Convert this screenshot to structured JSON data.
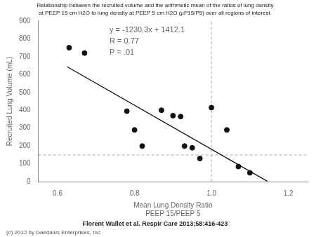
{
  "chart_data": {
    "type": "scatter",
    "title": [
      "Relationship between the recruited volume and the arithmetic mean of the ratios of lung density",
      "at PEEP 15 cm H2O to lung density at PEEP 5 cm H2O (μP15/P5) over all regions of interest."
    ],
    "x_label": [
      "Mean Lung Density Ratio",
      "PEEP 15/PEEP 5"
    ],
    "y_label": "Recruited Lung Volume (mL)",
    "xlim": [
      0.55,
      1.25
    ],
    "ylim": [
      0,
      900
    ],
    "xticks": [
      0.6,
      0.8,
      {
        "value": 1.0,
        "label": "1.0"
      },
      1.2
    ],
    "yticks": [
      0,
      100,
      200,
      300,
      400,
      500,
      600,
      700,
      800,
      900
    ],
    "grid": false,
    "series": [
      {
        "type": "scatter",
        "color": "#111111",
        "marker": "circle",
        "x": [
          0.63,
          0.67,
          0.78,
          0.8,
          0.82,
          0.87,
          0.9,
          0.92,
          0.93,
          0.95,
          0.97,
          1.0,
          1.04,
          1.07,
          1.1
        ],
        "values": [
          750,
          720,
          395,
          290,
          200,
          400,
          370,
          365,
          200,
          190,
          130,
          415,
          290,
          85,
          50
        ]
      },
      {
        "type": "line",
        "color": "#111111",
        "line_style": "solid",
        "x": [
          0.625,
          1.145
        ],
        "values": [
          643.1625,
          3.4065
        ]
      }
    ],
    "hlines": [
      {
        "value": 150,
        "color": "#aaaaaa",
        "line_style": "dashed"
      }
    ],
    "vlines": [
      {
        "value": 1.0,
        "color": "#aaaaaa",
        "line_style": "dashed"
      }
    ],
    "annotations": [
      {
        "x": 0.735,
        "y": 870,
        "color": "#666666",
        "text": [
          "y = -1230.3x + 1412.1",
          "R = 0.77",
          "P = .01"
        ]
      }
    ],
    "citation": "Florent Wallet et al. Respir Care 2013;58:416-423",
    "copyright": {
      "text": "(c) 2012 by Daedalus Enterprises, Inc.",
      "color": "#555555"
    }
  }
}
